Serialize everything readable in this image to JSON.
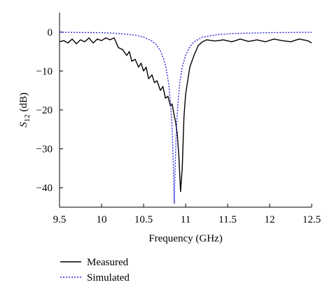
{
  "chart_data": {
    "type": "line",
    "xlabel": "Frequency (GHz)",
    "ylabel_main": "S",
    "ylabel_sub": "12",
    "ylabel_unit": " (dB)",
    "xlim": [
      9.5,
      12.5
    ],
    "ylim": [
      -45,
      5
    ],
    "xticks": [
      "9.5",
      "10",
      "10.5",
      "11",
      "11.5",
      "12",
      "12.5"
    ],
    "yticks": [
      "0",
      "−10",
      "−20",
      "−30",
      "−40"
    ],
    "grid": false,
    "legend_position": "bottom-left",
    "series": [
      {
        "name": "Measured",
        "color": "#000000",
        "style": "solid",
        "points": [
          [
            9.5,
            -2.5
          ],
          [
            9.55,
            -2.2
          ],
          [
            9.6,
            -2.8
          ],
          [
            9.65,
            -1.8
          ],
          [
            9.7,
            -3.0
          ],
          [
            9.75,
            -2.0
          ],
          [
            9.8,
            -2.5
          ],
          [
            9.85,
            -1.5
          ],
          [
            9.9,
            -2.8
          ],
          [
            9.95,
            -1.8
          ],
          [
            10.0,
            -2.2
          ],
          [
            10.05,
            -1.5
          ],
          [
            10.1,
            -2.0
          ],
          [
            10.15,
            -1.5
          ],
          [
            10.2,
            -4.0
          ],
          [
            10.25,
            -4.5
          ],
          [
            10.3,
            -6.0
          ],
          [
            10.33,
            -5.0
          ],
          [
            10.36,
            -7.5
          ],
          [
            10.4,
            -7.0
          ],
          [
            10.44,
            -9.0
          ],
          [
            10.47,
            -8.0
          ],
          [
            10.5,
            -10.0
          ],
          [
            10.53,
            -9.0
          ],
          [
            10.56,
            -12.0
          ],
          [
            10.6,
            -11.0
          ],
          [
            10.63,
            -13.0
          ],
          [
            10.66,
            -12.5
          ],
          [
            10.7,
            -15.0
          ],
          [
            10.73,
            -14.0
          ],
          [
            10.76,
            -17.0
          ],
          [
            10.79,
            -16.5
          ],
          [
            10.82,
            -19.0
          ],
          [
            10.84,
            -18.5
          ],
          [
            10.86,
            -21.0
          ],
          [
            10.88,
            -23.0
          ],
          [
            10.9,
            -26.0
          ],
          [
            10.92,
            -32.0
          ],
          [
            10.94,
            -41.0
          ],
          [
            10.96,
            -35.0
          ],
          [
            10.98,
            -22.0
          ],
          [
            11.0,
            -16.0
          ],
          [
            11.05,
            -9.0
          ],
          [
            11.1,
            -6.0
          ],
          [
            11.15,
            -3.5
          ],
          [
            11.2,
            -2.5
          ],
          [
            11.25,
            -2.0
          ],
          [
            11.35,
            -2.3
          ],
          [
            11.45,
            -2.0
          ],
          [
            11.55,
            -2.5
          ],
          [
            11.65,
            -1.8
          ],
          [
            11.75,
            -2.4
          ],
          [
            11.85,
            -2.0
          ],
          [
            11.95,
            -2.5
          ],
          [
            12.05,
            -1.8
          ],
          [
            12.15,
            -2.2
          ],
          [
            12.25,
            -2.5
          ],
          [
            12.35,
            -1.8
          ],
          [
            12.45,
            -2.2
          ],
          [
            12.5,
            -2.8
          ]
        ]
      },
      {
        "name": "Simulated",
        "color": "#2b2bd6",
        "style": "dotted",
        "points": [
          [
            9.5,
            -0.05
          ],
          [
            10.0,
            -0.15
          ],
          [
            10.2,
            -0.35
          ],
          [
            10.4,
            -0.8
          ],
          [
            10.5,
            -1.3
          ],
          [
            10.6,
            -2.3
          ],
          [
            10.65,
            -3.2
          ],
          [
            10.7,
            -4.8
          ],
          [
            10.74,
            -7.0
          ],
          [
            10.77,
            -9.5
          ],
          [
            10.8,
            -13.5
          ],
          [
            10.82,
            -18.0
          ],
          [
            10.84,
            -25.0
          ],
          [
            10.855,
            -35.0
          ],
          [
            10.865,
            -44.0
          ],
          [
            10.875,
            -35.0
          ],
          [
            10.89,
            -25.0
          ],
          [
            10.91,
            -18.0
          ],
          [
            10.93,
            -13.0
          ],
          [
            10.96,
            -9.0
          ],
          [
            11.0,
            -6.0
          ],
          [
            11.05,
            -3.8
          ],
          [
            11.1,
            -2.5
          ],
          [
            11.2,
            -1.3
          ],
          [
            11.4,
            -0.6
          ],
          [
            11.6,
            -0.35
          ],
          [
            12.0,
            -0.15
          ],
          [
            12.5,
            -0.06
          ]
        ]
      }
    ]
  }
}
